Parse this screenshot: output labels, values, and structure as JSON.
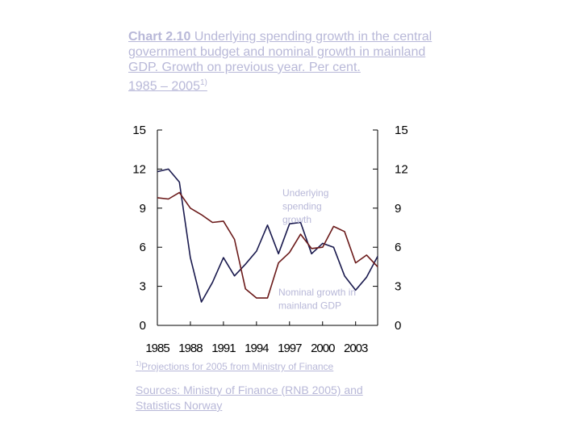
{
  "chart_data": {
    "type": "line",
    "title_prefix": "Chart 2.10",
    "title": "Underlying spending growth in the central government budget and nominal growth in mainland GDP. Growth on previous year. Per cent.",
    "subtitle": "1985 – 2005",
    "subtitle_sup": "1)",
    "x": [
      1985,
      1986,
      1987,
      1988,
      1989,
      1990,
      1991,
      1992,
      1993,
      1994,
      1995,
      1996,
      1997,
      1998,
      1999,
      2000,
      2001,
      2002,
      2003,
      2004,
      2005
    ],
    "xticks": [
      "1985",
      "1988",
      "1991",
      "1994",
      "1997",
      "2000",
      "2003"
    ],
    "yticks": [
      "0",
      "3",
      "6",
      "9",
      "12",
      "15"
    ],
    "ylim": [
      0,
      15
    ],
    "xlim": [
      1985,
      2005
    ],
    "series": [
      {
        "name": "Underlying spending growth",
        "color": "#1a1a4e",
        "values": [
          11.8,
          12.0,
          11.0,
          5.2,
          1.8,
          3.3,
          5.2,
          3.8,
          4.7,
          5.7,
          7.7,
          5.5,
          7.8,
          7.9,
          5.5,
          6.3,
          6.0,
          3.8,
          2.7,
          3.7,
          5.3
        ]
      },
      {
        "name": "Nominal growth in mainland GDP",
        "color": "#6b1a1a",
        "values": [
          9.8,
          9.7,
          10.2,
          9.0,
          8.5,
          7.9,
          8.0,
          6.6,
          2.8,
          2.1,
          2.1,
          4.8,
          5.6,
          7.0,
          5.9,
          6.0,
          7.6,
          7.2,
          4.8,
          5.4,
          4.5
        ]
      }
    ],
    "annotations": [
      {
        "lines": [
          "Underlying",
          "spending",
          "growth"
        ]
      },
      {
        "lines": [
          "Nominal growth in",
          "mainland GDP"
        ]
      }
    ],
    "footnote_sup": "1)",
    "footnote": "Projections for 2005 from Ministry of Finance",
    "sources": "Sources: Ministry of Finance (RNB 2005) and Statistics Norway"
  }
}
